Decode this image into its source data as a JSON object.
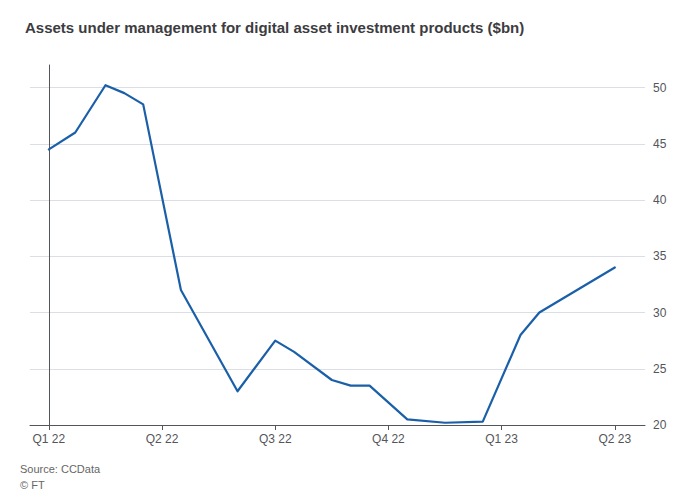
{
  "chart_data": {
    "type": "line",
    "title": "Assets under management for digital asset investment products ($bn)",
    "annotations": [
      "Source: CCData",
      "© FT"
    ],
    "x": [
      0,
      0.7,
      1.5,
      2.0,
      2.5,
      3.5,
      5.0,
      6.0,
      6.5,
      7.5,
      8.0,
      8.5,
      9.5,
      10.5,
      11.5,
      12.5,
      13.0,
      14.0,
      15.0
    ],
    "values": [
      44.5,
      46.0,
      50.2,
      49.5,
      48.5,
      32.0,
      23.0,
      27.5,
      26.5,
      24.0,
      23.5,
      23.5,
      20.5,
      20.2,
      20.3,
      28.0,
      30.0,
      32.0,
      34.0
    ],
    "color": "#1a5fa8",
    "xlim": [
      -0.5,
      15.8
    ],
    "xticks": [
      {
        "value": 0,
        "label": "Q1 22"
      },
      {
        "value": 3,
        "label": "Q2 22"
      },
      {
        "value": 6,
        "label": "Q3 22"
      },
      {
        "value": 9,
        "label": "Q4 22"
      },
      {
        "value": 12,
        "label": "Q1 23"
      },
      {
        "value": 15,
        "label": "Q2 23"
      }
    ],
    "ylim": [
      20,
      52
    ],
    "yticks": [
      20,
      25,
      30,
      35,
      40,
      45,
      50
    ],
    "grid": true
  }
}
